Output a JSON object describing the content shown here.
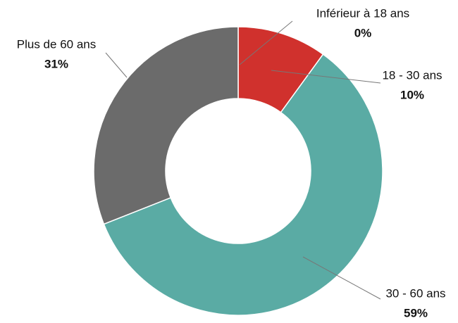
{
  "chart_data": {
    "type": "donut",
    "categories": [
      "Inférieur à 18 ans",
      "18 - 30 ans",
      "30 - 60 ans",
      "Plus de 60 ans"
    ],
    "values": [
      0,
      10,
      59,
      31
    ],
    "value_labels": [
      "0%",
      "10%",
      "59%",
      "31%"
    ],
    "colors": [
      "#d7d7d7",
      "#d0312d",
      "#5aaba4",
      "#6b6b6b"
    ]
  }
}
